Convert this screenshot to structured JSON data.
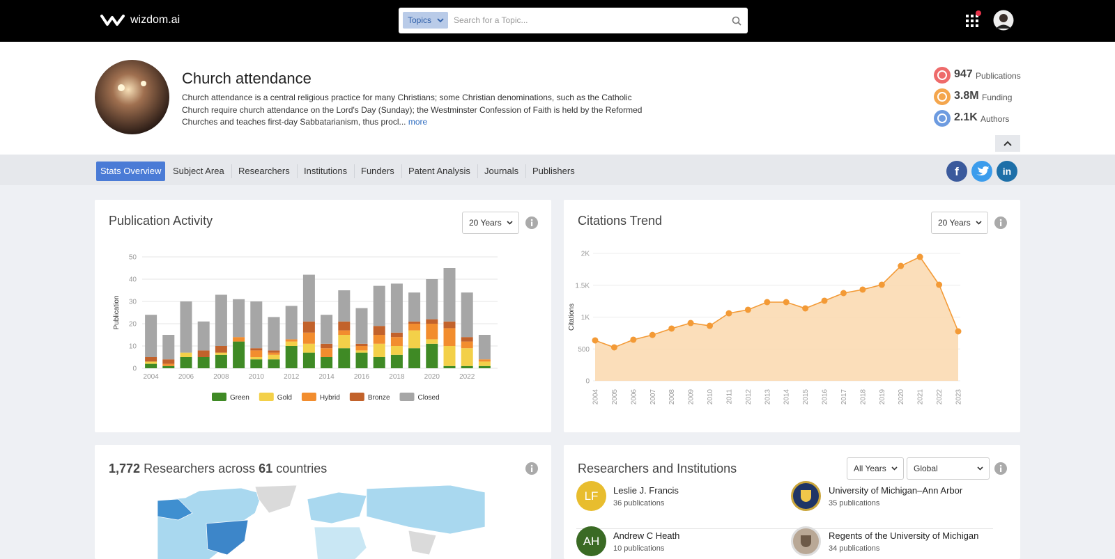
{
  "header": {
    "logo": "wizdom.ai",
    "search_filter": "Topics",
    "search_placeholder": "Search for a Topic..."
  },
  "topic": {
    "title": "Church attendance",
    "description": "Church attendance is a central religious practice for many Christians; some Christian denominations, such as the Catholic Church require church attendance on the Lord's Day (Sunday); the Westminster Confession of Faith is held by the Reformed Churches and teaches first-day Sabbatarianism, thus procl...",
    "more": "more"
  },
  "stats": [
    {
      "value": "947",
      "label": "Publications"
    },
    {
      "value": "3.8M",
      "label": "Funding"
    },
    {
      "value": "2.1K",
      "label": "Authors"
    }
  ],
  "tabs": [
    "Stats Overview",
    "Subject Area",
    "Researchers",
    "Institutions",
    "Funders",
    "Patent Analysis",
    "Journals",
    "Publishers"
  ],
  "social": {
    "facebook": "f",
    "linkedin": "in"
  },
  "chart_data": [
    {
      "type": "bar",
      "stacked": true,
      "title": "Publication Activity",
      "period": "20 Years",
      "y_label": "Publication",
      "categories": [
        "2004",
        null,
        "2006",
        null,
        "2008",
        null,
        "2010",
        null,
        "2012",
        null,
        "2014",
        null,
        "2016",
        null,
        "2018",
        null,
        "2020",
        null,
        "2022",
        null
      ],
      "series": [
        {
          "name": "Green",
          "color": "#3f8a25",
          "values": [
            2,
            1,
            5,
            5,
            6,
            12,
            4,
            4,
            10,
            7,
            5,
            9,
            7,
            5,
            6,
            9,
            11,
            1,
            1,
            1
          ]
        },
        {
          "name": "Gold",
          "color": "#f3d049",
          "values": [
            1,
            0,
            2,
            0,
            1,
            0,
            1,
            2,
            2,
            4,
            0,
            6,
            1,
            6,
            4,
            8,
            2,
            9,
            8,
            2
          ]
        },
        {
          "name": "Hybrid",
          "color": "#f28d2e",
          "values": [
            0,
            1,
            0,
            0,
            0,
            2,
            3,
            1,
            1,
            5,
            4,
            2,
            2,
            4,
            4,
            3,
            7,
            8,
            3,
            1
          ]
        },
        {
          "name": "Bronze",
          "color": "#c2622b",
          "values": [
            2,
            2,
            0,
            3,
            3,
            0,
            1,
            1,
            0,
            5,
            2,
            4,
            1,
            4,
            2,
            1,
            2,
            3,
            2,
            0
          ]
        },
        {
          "name": "Closed",
          "color": "#a6a6a6",
          "values": [
            19,
            11,
            23,
            13,
            23,
            17,
            21,
            15,
            15,
            21,
            13,
            14,
            16,
            18,
            22,
            13,
            18,
            24,
            20,
            11
          ]
        }
      ],
      "ylim": [
        0,
        50
      ],
      "yticks": [
        0,
        10,
        20,
        30,
        40,
        50
      ],
      "grid": true,
      "legend": "bottom"
    },
    {
      "type": "area",
      "title": "Citations Trend",
      "period": "20 Years",
      "y_label": "Citations",
      "categories": [
        "2004",
        "2005",
        "2006",
        "2007",
        "2008",
        "2009",
        "2010",
        "2011",
        "2012",
        "2013",
        "2014",
        "2015",
        "2016",
        "2017",
        "2018",
        "2019",
        "2020",
        "2021",
        "2022",
        "2023"
      ],
      "series": [
        {
          "color": "#f39a36",
          "values": [
            634,
            525,
            645,
            720,
            820,
            907,
            863,
            1060,
            1115,
            1235,
            1235,
            1137,
            1257,
            1377,
            1432,
            1508,
            1803,
            1945,
            1508,
            776
          ]
        }
      ],
      "ylim": [
        0,
        2000
      ],
      "yticks": [
        0,
        500,
        {
          "value": 1000,
          "label": "1K"
        },
        {
          "value": 1500,
          "label": "1.5K"
        },
        {
          "value": 2000,
          "label": "2K"
        }
      ],
      "grid": true
    }
  ],
  "map_panel": {
    "researchers": "1,772",
    "text_a": "Researchers across",
    "countries": "61",
    "text_b": "countries"
  },
  "researchers_institutions": {
    "title": "Researchers and Institutions",
    "years": "All Years",
    "region": "Global",
    "researchers": [
      {
        "initials": "LF",
        "name": "Leslie J. Francis",
        "publications": "36 publications"
      },
      {
        "initials": "AH",
        "name": "Andrew C Heath",
        "publications": "10 publications"
      }
    ],
    "institutions": [
      {
        "name": "University of Michigan–Ann Arbor",
        "publications": "35 publications"
      },
      {
        "name": "Regents of the University of Michigan",
        "publications": "34 publications"
      }
    ]
  }
}
